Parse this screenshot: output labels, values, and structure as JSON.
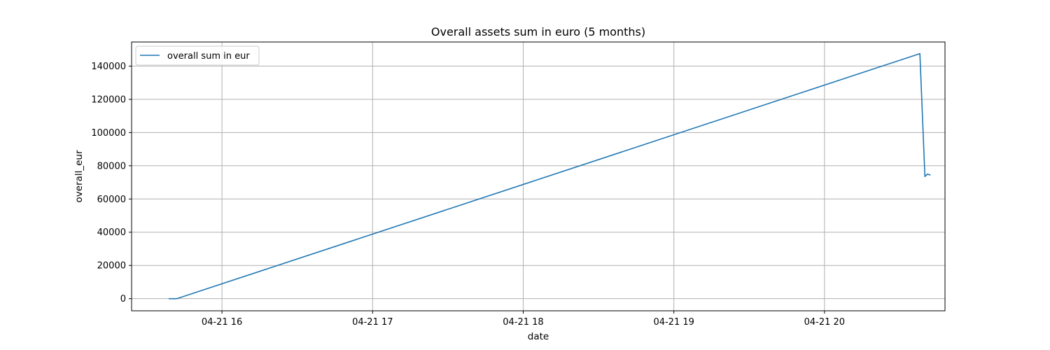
{
  "chart_data": {
    "type": "line",
    "title": "Overall assets sum in euro (5 months)",
    "xlabel": "date",
    "ylabel": "overall_eur",
    "x_axis_type": "datetime-hours",
    "xlim": [
      "04-21 15:24",
      "04-21 20:48"
    ],
    "ylim": [
      -7300,
      154500
    ],
    "grid": true,
    "legend_position": "upper-left",
    "line_color": "#1f77b4",
    "x_ticks": [
      {
        "value": "04-21 16:00",
        "label": "04-21 16"
      },
      {
        "value": "04-21 17:00",
        "label": "04-21 17"
      },
      {
        "value": "04-21 18:00",
        "label": "04-21 18"
      },
      {
        "value": "04-21 19:00",
        "label": "04-21 19"
      },
      {
        "value": "04-21 20:00",
        "label": "04-21 20"
      }
    ],
    "y_ticks": [
      {
        "value": 0,
        "label": "0"
      },
      {
        "value": 20000,
        "label": "20000"
      },
      {
        "value": 40000,
        "label": "40000"
      },
      {
        "value": 60000,
        "label": "60000"
      },
      {
        "value": 80000,
        "label": "80000"
      },
      {
        "value": 100000,
        "label": "100000"
      },
      {
        "value": 120000,
        "label": "120000"
      },
      {
        "value": 140000,
        "label": "140000"
      }
    ],
    "series": [
      {
        "name": "overall sum in eur",
        "points": [
          {
            "x": "04-21 15:39",
            "y": 0
          },
          {
            "x": "04-21 15:41",
            "y": 0
          },
          {
            "x": "04-21 15:42",
            "y": 0
          },
          {
            "x": "04-21 20:38",
            "y": 147500
          },
          {
            "x": "04-21 20:40",
            "y": 73500
          },
          {
            "x": "04-21 20:41",
            "y": 75000
          },
          {
            "x": "04-21 20:42",
            "y": 74500
          }
        ]
      }
    ]
  }
}
